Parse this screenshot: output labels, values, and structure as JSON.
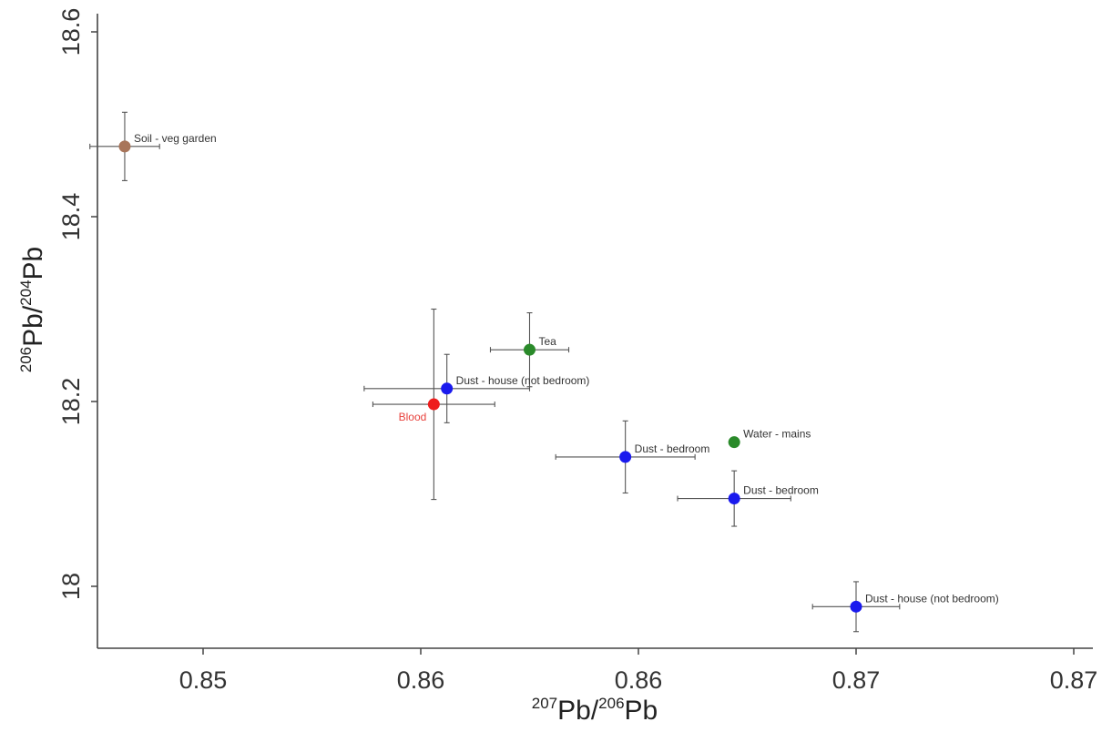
{
  "chart_data": {
    "type": "scatter",
    "title": "",
    "xlabel": {
      "sup1": "207",
      "base1": "Pb/",
      "sup2": "206",
      "base2": "Pb"
    },
    "ylabel": {
      "sup1": "206",
      "base1": "Pb/",
      "sup2": "204",
      "base2": "Pb"
    },
    "xlim": [
      0.8456,
      0.87
    ],
    "ylim": [
      17.93,
      18.6
    ],
    "x_ticks": [
      {
        "value": 0.85,
        "label": "0.85"
      },
      {
        "value": 0.855,
        "label": "0.86"
      },
      {
        "value": 0.86,
        "label": "0.86"
      },
      {
        "value": 0.865,
        "label": "0.87"
      },
      {
        "value": 0.87,
        "label": "0.87"
      }
    ],
    "y_ticks": [
      {
        "value": 18.0,
        "label": "18"
      },
      {
        "value": 18.2,
        "label": "18.2"
      },
      {
        "value": 18.4,
        "label": "18.4"
      },
      {
        "value": 18.6,
        "label": "18.6"
      }
    ],
    "grid": false,
    "legend": "none",
    "points": [
      {
        "label": "Soil - veg garden",
        "x": 0.8482,
        "y": 18.476,
        "xerr": 0.0008,
        "yerr": 0.037,
        "color": "#a8755a",
        "label_pos": "right-above",
        "label_color": "#333333"
      },
      {
        "label": "Tea",
        "x": 0.8575,
        "y": 18.256,
        "xerr": 0.0009,
        "yerr": 0.04,
        "color": "#2a8a2a",
        "label_pos": "right-above",
        "label_color": "#333333"
      },
      {
        "label": "Dust - house (not bedroom)",
        "x": 0.8556,
        "y": 18.214,
        "xerr": 0.0019,
        "yerr": 0.037,
        "color": "#1a1aee",
        "label_pos": "right-above",
        "label_color": "#333333"
      },
      {
        "label": "Blood",
        "x": 0.8553,
        "y": 18.197,
        "xerr": 0.0014,
        "yerr": 0.103,
        "color": "#ee1c1c",
        "label_pos": "left-below",
        "label_color": "#e8413c"
      },
      {
        "label": "Water - mains",
        "x": 0.8622,
        "y": 18.156,
        "xerr": 0,
        "yerr": 0,
        "color": "#2a8a2a",
        "label_pos": "right-above",
        "label_color": "#333333"
      },
      {
        "label": "Dust - bedroom",
        "x": 0.8597,
        "y": 18.14,
        "xerr": 0.0016,
        "yerr": 0.039,
        "color": "#1a1aee",
        "label_pos": "right-above",
        "label_color": "#333333"
      },
      {
        "label": "Dust - bedroom",
        "x": 0.8622,
        "y": 18.095,
        "xerr": 0.0013,
        "yerr": 0.03,
        "color": "#1a1aee",
        "label_pos": "right-above",
        "label_color": "#333333"
      },
      {
        "label": "Dust - house (not bedroom)",
        "x": 0.865,
        "y": 17.978,
        "xerr": 0.001,
        "yerr": 0.027,
        "color": "#1a1aee",
        "label_pos": "right-above",
        "label_color": "#333333"
      }
    ]
  }
}
